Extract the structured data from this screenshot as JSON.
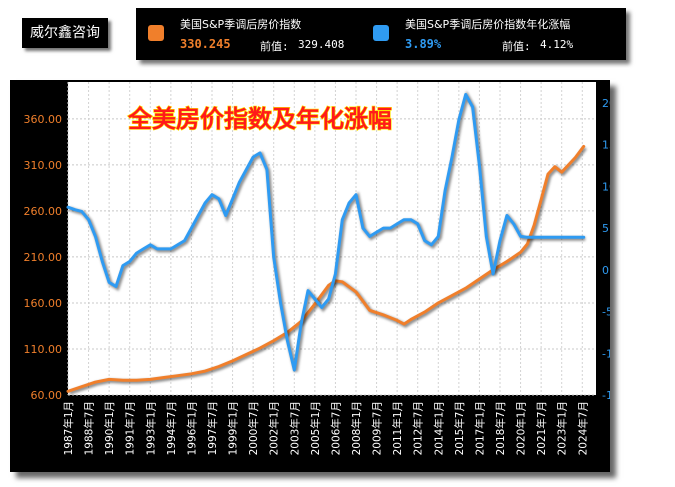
{
  "brand": "威尔鑫咨询",
  "legend": {
    "items": [
      {
        "name": "美国S&P季调后房价指数",
        "value": "330.245",
        "prev_label": "前值:",
        "prev": "329.408",
        "color": "#f07f2b"
      },
      {
        "name": "美国S&P季调后房价指数年化涨幅",
        "value": "3.89%",
        "prev_label": "前值:",
        "prev": "4.12%",
        "color": "#2f9bf2"
      }
    ]
  },
  "chart_data": {
    "type": "line",
    "title": "全美房价指数及年化涨幅",
    "x_ticks": [
      "1987年1月",
      "1988年7月",
      "1990年1月",
      "1991年7月",
      "1993年1月",
      "1994年7月",
      "1996年1月",
      "1997年7月",
      "1999年1月",
      "2000年7月",
      "2002年1月",
      "2003年7月",
      "2005年1月",
      "2006年7月",
      "2008年1月",
      "2009年7月",
      "2011年1月",
      "2012年7月",
      "2014年1月",
      "2015年7月",
      "2017年1月",
      "2018年7月",
      "2020年1月",
      "2021年7月",
      "2023年1月",
      "2024年7月"
    ],
    "y_left": {
      "ticks": [
        "60.00",
        "110.00",
        "160.00",
        "210.00",
        "260.00",
        "310.00",
        "360.00"
      ],
      "range": [
        60,
        400
      ],
      "color": "#f07f2b"
    },
    "y_right": {
      "ticks": [
        "-15.0%",
        "-10.0%",
        "-5.0%",
        "0.0%",
        "5.0%",
        "10.0%",
        "15.0%",
        "20.0%"
      ],
      "range": [
        -15,
        22.5
      ],
      "color": "#2f9bf2"
    },
    "grid": true,
    "series": [
      {
        "name": "美国S&P季调后房价指数",
        "axis": "left",
        "color": "#f07f2b",
        "x": [
          1987.0,
          1988.0,
          1989.0,
          1990.0,
          1991.0,
          1992.0,
          1993.0,
          1994.0,
          1995.0,
          1996.0,
          1997.0,
          1998.0,
          1999.0,
          2000.0,
          2001.0,
          2002.0,
          2003.0,
          2004.0,
          2005.0,
          2006.0,
          2006.5,
          2007.0,
          2008.0,
          2009.0,
          2010.0,
          2011.0,
          2011.5,
          2012.0,
          2013.0,
          2014.0,
          2015.0,
          2016.0,
          2017.0,
          2018.0,
          2019.0,
          2020.0,
          2020.5,
          2021.0,
          2021.5,
          2022.0,
          2022.5,
          2023.0,
          2024.0,
          2024.6
        ],
        "values": [
          64,
          69,
          74,
          77,
          76,
          76,
          77,
          79,
          81,
          83,
          86,
          91,
          97,
          104,
          111,
          119,
          128,
          140,
          159,
          179,
          184,
          183,
          172,
          152,
          147,
          141,
          137,
          142,
          150,
          160,
          168,
          176,
          186,
          196,
          205,
          215,
          224,
          245,
          272,
          300,
          308,
          302,
          318,
          330
        ]
      },
      {
        "name": "美国S&P季调后房价指数年化涨幅",
        "axis": "right",
        "color": "#2f9bf2",
        "x": [
          1987.0,
          1987.5,
          1988.0,
          1988.5,
          1989.0,
          1989.5,
          1990.0,
          1990.5,
          1991.0,
          1991.5,
          1992.0,
          1992.5,
          1993.0,
          1993.5,
          1994.0,
          1994.5,
          1995.0,
          1995.5,
          1996.0,
          1996.5,
          1997.0,
          1997.5,
          1998.0,
          1998.5,
          1999.0,
          1999.5,
          2000.0,
          2000.5,
          2001.0,
          2001.5,
          2002.0,
          2002.5,
          2003.0,
          2003.5,
          2004.0,
          2004.5,
          2005.0,
          2005.5,
          2006.0,
          2006.5,
          2007.0,
          2007.5,
          2008.0,
          2008.5,
          2009.0,
          2009.5,
          2010.0,
          2010.5,
          2011.0,
          2011.5,
          2012.0,
          2012.5,
          2013.0,
          2013.5,
          2014.0,
          2014.5,
          2015.0,
          2015.5,
          2016.0,
          2016.5,
          2017.0,
          2017.5,
          2018.0,
          2018.5,
          2019.0,
          2019.5,
          2020.0,
          2020.5,
          2021.0,
          2021.5,
          2022.0,
          2022.5,
          2023.0,
          2023.5,
          2024.0,
          2024.5,
          2024.6
        ],
        "values": [
          7.5,
          7.2,
          7.0,
          6.0,
          4.0,
          1.0,
          -1.5,
          -2.0,
          0.5,
          1.0,
          2.0,
          2.5,
          3.0,
          2.5,
          2.5,
          2.5,
          3.0,
          3.5,
          5.0,
          6.5,
          8.0,
          9.0,
          8.5,
          6.5,
          8.5,
          10.5,
          12.0,
          13.5,
          14.0,
          12.0,
          1.5,
          -4.0,
          -8.5,
          -12.0,
          -6.5,
          -2.5,
          -3.5,
          -4.5,
          -3.5,
          -0.5,
          6.0,
          8.0,
          9.0,
          5.0,
          4.0,
          4.5,
          5.0,
          5.0,
          5.5,
          6.0,
          6.0,
          5.5,
          3.5,
          3.0,
          4.0,
          9.5,
          13.5,
          18.0,
          21.0,
          19.5,
          12.5,
          4.0,
          -0.5,
          3.5,
          6.5,
          5.5,
          4.0,
          3.89,
          3.89,
          3.89,
          3.89,
          3.89,
          3.89,
          3.89,
          3.89,
          3.89,
          3.89
        ]
      }
    ]
  }
}
